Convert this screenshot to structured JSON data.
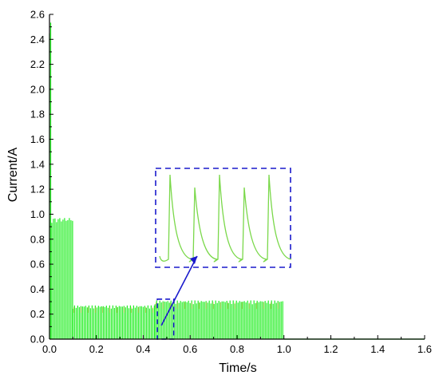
{
  "chart_data": {
    "type": "line",
    "xlabel": "Time/s",
    "ylabel": "Current/A",
    "xlim": [
      0.0,
      1.6
    ],
    "ylim": [
      0.0,
      2.6
    ],
    "xticks": [
      "0.0",
      "0.2",
      "0.4",
      "0.6",
      "0.8",
      "1.0",
      "1.2",
      "1.4",
      "1.6"
    ],
    "yticks": [
      "0.0",
      "0.2",
      "0.4",
      "0.6",
      "0.8",
      "1.0",
      "1.2",
      "1.4",
      "1.6",
      "1.8",
      "2.0",
      "2.2",
      "2.4",
      "2.6"
    ],
    "grid": false,
    "colors": {
      "signal": "#22ee22",
      "signal_dark": "#ff7a00",
      "inset_line": "#7ad84a",
      "box": "#1a1acc",
      "arrow": "#1a1acc"
    },
    "series": [
      {
        "segments": [
          {
            "t_start": 0.0,
            "t_end": 0.01,
            "peak": 2.55,
            "trough": 0.0
          },
          {
            "t_start": 0.01,
            "t_end": 0.1,
            "peak": 0.97,
            "trough": 0.0
          },
          {
            "t_start": 0.1,
            "t_end": 0.45,
            "peak": 0.27,
            "trough": 0.0
          },
          {
            "t_start": 0.45,
            "t_end": 1.0,
            "peak": 0.31,
            "trough": 0.0
          }
        ],
        "after_end_value": 0.0
      }
    ],
    "zoom_box": {
      "x_range": [
        0.46,
        0.53
      ],
      "y_range": [
        0.0,
        0.32
      ]
    },
    "inset": {
      "pulses": 5
    }
  }
}
